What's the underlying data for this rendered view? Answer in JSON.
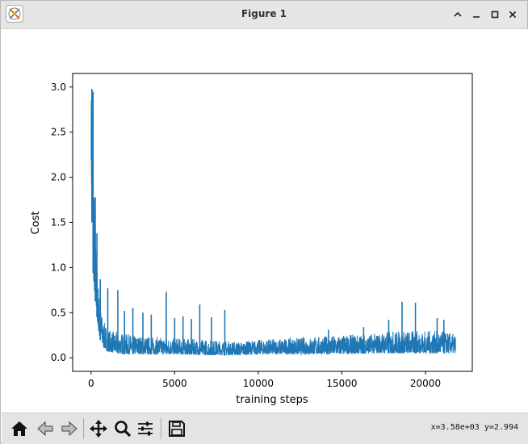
{
  "window": {
    "title": "Figure 1",
    "controls": [
      "chevron-up-icon",
      "minimize-icon",
      "maximize-icon",
      "close-icon"
    ]
  },
  "toolbar": {
    "tools": [
      "home-icon",
      "back-icon",
      "forward-icon",
      "pan-icon",
      "zoom-icon",
      "configure-subplots-icon",
      "save-icon"
    ],
    "coords": "x=3.58e+03 y=2.994"
  },
  "chart_data": {
    "type": "line",
    "xlabel": "training steps",
    "ylabel": "Cost",
    "xlim": [
      -1100,
      22800
    ],
    "ylim": [
      -0.15,
      3.15
    ],
    "xticks": [
      0,
      5000,
      10000,
      15000,
      20000
    ],
    "yticks": [
      0.0,
      0.5,
      1.0,
      1.5,
      2.0,
      2.5,
      3.0
    ],
    "series": [
      {
        "color": "#1f77b4",
        "x_max": 21800,
        "envelope": {
          "x": [
            0,
            50,
            100,
            200,
            300,
            400,
            500,
            700,
            1000,
            1500,
            2000,
            3000,
            5000,
            7000,
            9000,
            10000,
            12000,
            14000,
            15000,
            17000,
            18000,
            20000,
            21000,
            21800
          ],
          "low": [
            2.2,
            1.5,
            1.0,
            0.7,
            0.55,
            0.35,
            0.22,
            0.12,
            0.07,
            0.05,
            0.04,
            0.04,
            0.04,
            0.03,
            0.03,
            0.04,
            0.04,
            0.04,
            0.04,
            0.05,
            0.05,
            0.05,
            0.05,
            0.05
          ],
          "high": [
            2.98,
            2.9,
            2.4,
            1.8,
            1.35,
            0.95,
            0.65,
            0.42,
            0.32,
            0.28,
            0.27,
            0.24,
            0.22,
            0.2,
            0.18,
            0.2,
            0.22,
            0.24,
            0.25,
            0.27,
            0.3,
            0.3,
            0.3,
            0.26
          ]
        },
        "spikes": [
          {
            "x": 50,
            "y": 2.98
          },
          {
            "x": 120,
            "y": 2.95
          },
          {
            "x": 250,
            "y": 1.78
          },
          {
            "x": 350,
            "y": 1.38
          },
          {
            "x": 550,
            "y": 0.87
          },
          {
            "x": 1000,
            "y": 0.77
          },
          {
            "x": 1600,
            "y": 0.75
          },
          {
            "x": 2000,
            "y": 0.52
          },
          {
            "x": 2500,
            "y": 0.55
          },
          {
            "x": 3100,
            "y": 0.5
          },
          {
            "x": 3600,
            "y": 0.48
          },
          {
            "x": 4500,
            "y": 0.73
          },
          {
            "x": 5000,
            "y": 0.44
          },
          {
            "x": 5500,
            "y": 0.46
          },
          {
            "x": 6000,
            "y": 0.43
          },
          {
            "x": 6500,
            "y": 0.59
          },
          {
            "x": 7200,
            "y": 0.45
          },
          {
            "x": 8000,
            "y": 0.53
          },
          {
            "x": 14200,
            "y": 0.31
          },
          {
            "x": 16300,
            "y": 0.34
          },
          {
            "x": 17800,
            "y": 0.42
          },
          {
            "x": 18600,
            "y": 0.62
          },
          {
            "x": 19400,
            "y": 0.61
          },
          {
            "x": 20700,
            "y": 0.44
          },
          {
            "x": 21100,
            "y": 0.42
          }
        ]
      }
    ]
  }
}
